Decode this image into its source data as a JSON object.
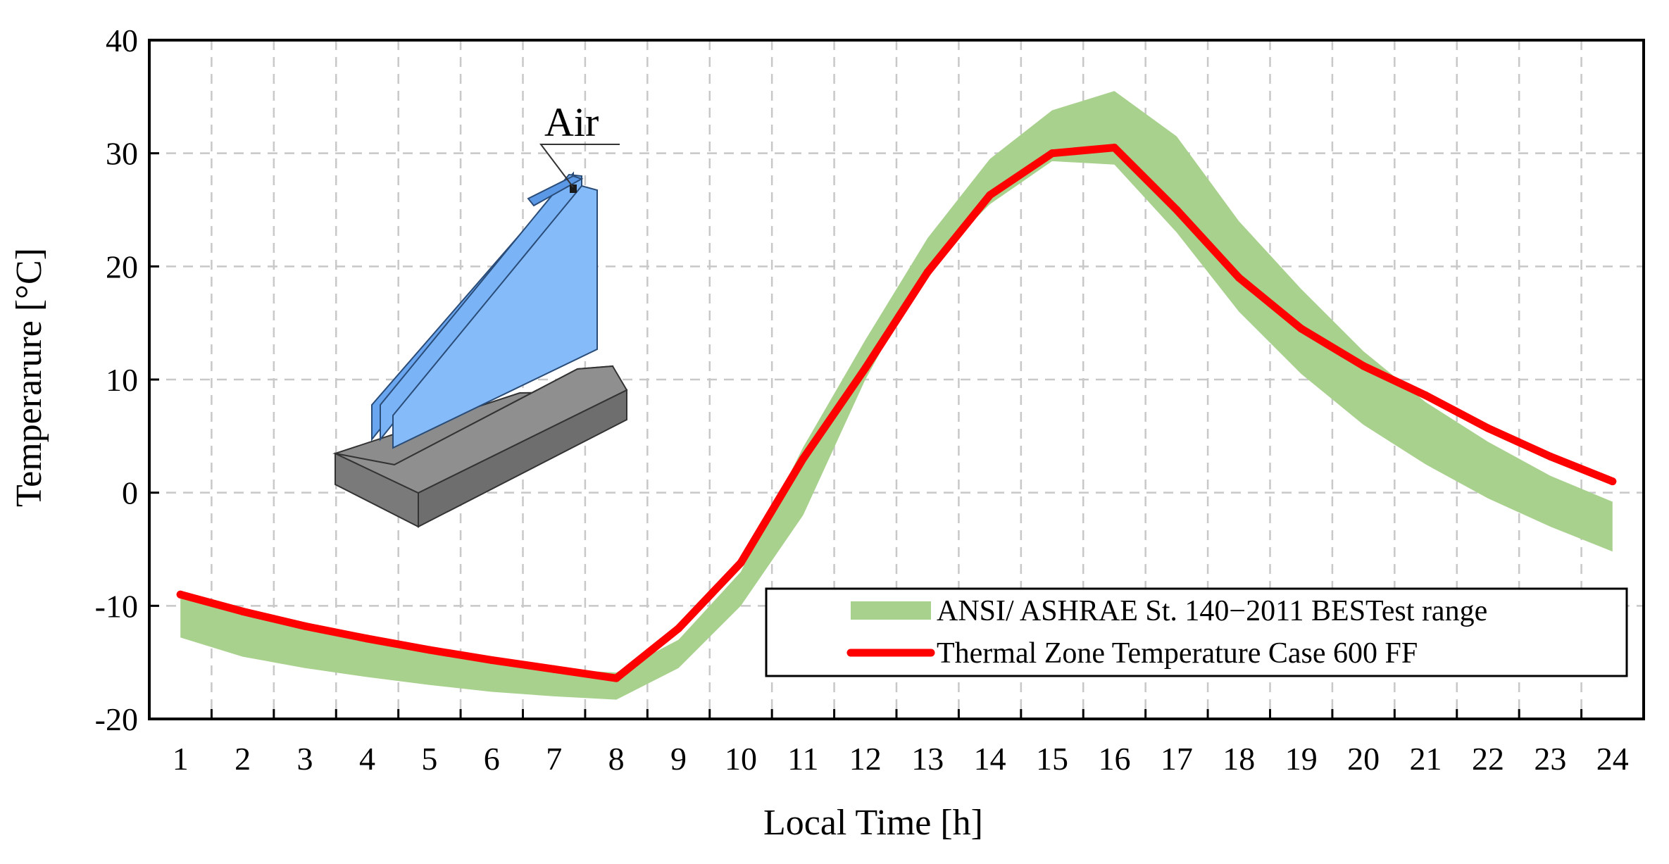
{
  "chart_data": {
    "type": "line",
    "title": "",
    "xlabel": "Local Time [h]",
    "ylabel": "Temperarure [°C]",
    "x": [
      1,
      2,
      3,
      4,
      5,
      6,
      7,
      8,
      9,
      10,
      11,
      12,
      13,
      14,
      15,
      16,
      17,
      18,
      19,
      20,
      21,
      22,
      23,
      24
    ],
    "xlim": [
      0.5,
      24.5
    ],
    "ylim": [
      -20,
      40
    ],
    "yticks": [
      -20,
      -10,
      0,
      10,
      20,
      30,
      40
    ],
    "grid": true,
    "legend_position": "bottom-right",
    "series": [
      {
        "name": "ANSI/ ASHRAE St. 140−2011 BESTest range",
        "kind": "band",
        "color": "#a9d18e",
        "lower": [
          -12.8,
          -14.5,
          -15.5,
          -16.3,
          -17.0,
          -17.6,
          -18.0,
          -18.3,
          -15.5,
          -10.0,
          -2.0,
          10.0,
          20.0,
          25.5,
          29.3,
          29.0,
          23.0,
          16.0,
          10.5,
          6.0,
          2.5,
          -0.5,
          -3.0,
          -5.2
        ],
        "upper": [
          -9.0,
          -10.8,
          -12.0,
          -13.0,
          -14.0,
          -14.8,
          -15.6,
          -15.9,
          -13.0,
          -7.0,
          4.0,
          13.5,
          22.5,
          29.5,
          33.8,
          35.5,
          31.5,
          24.0,
          18.0,
          12.5,
          8.0,
          4.5,
          1.5,
          -0.8
        ]
      },
      {
        "name": "Thermal Zone Temperature Case 600 FF",
        "kind": "line",
        "color": "#ff0000",
        "values": [
          -9.0,
          -10.5,
          -11.8,
          -12.9,
          -13.9,
          -14.8,
          -15.6,
          -16.4,
          -12.0,
          -6.2,
          3.0,
          11.0,
          19.5,
          26.3,
          30.0,
          30.5,
          25.0,
          19.0,
          14.5,
          11.2,
          8.6,
          5.7,
          3.2,
          1.0
        ]
      }
    ],
    "annotations": [
      {
        "text": "Air"
      }
    ]
  }
}
